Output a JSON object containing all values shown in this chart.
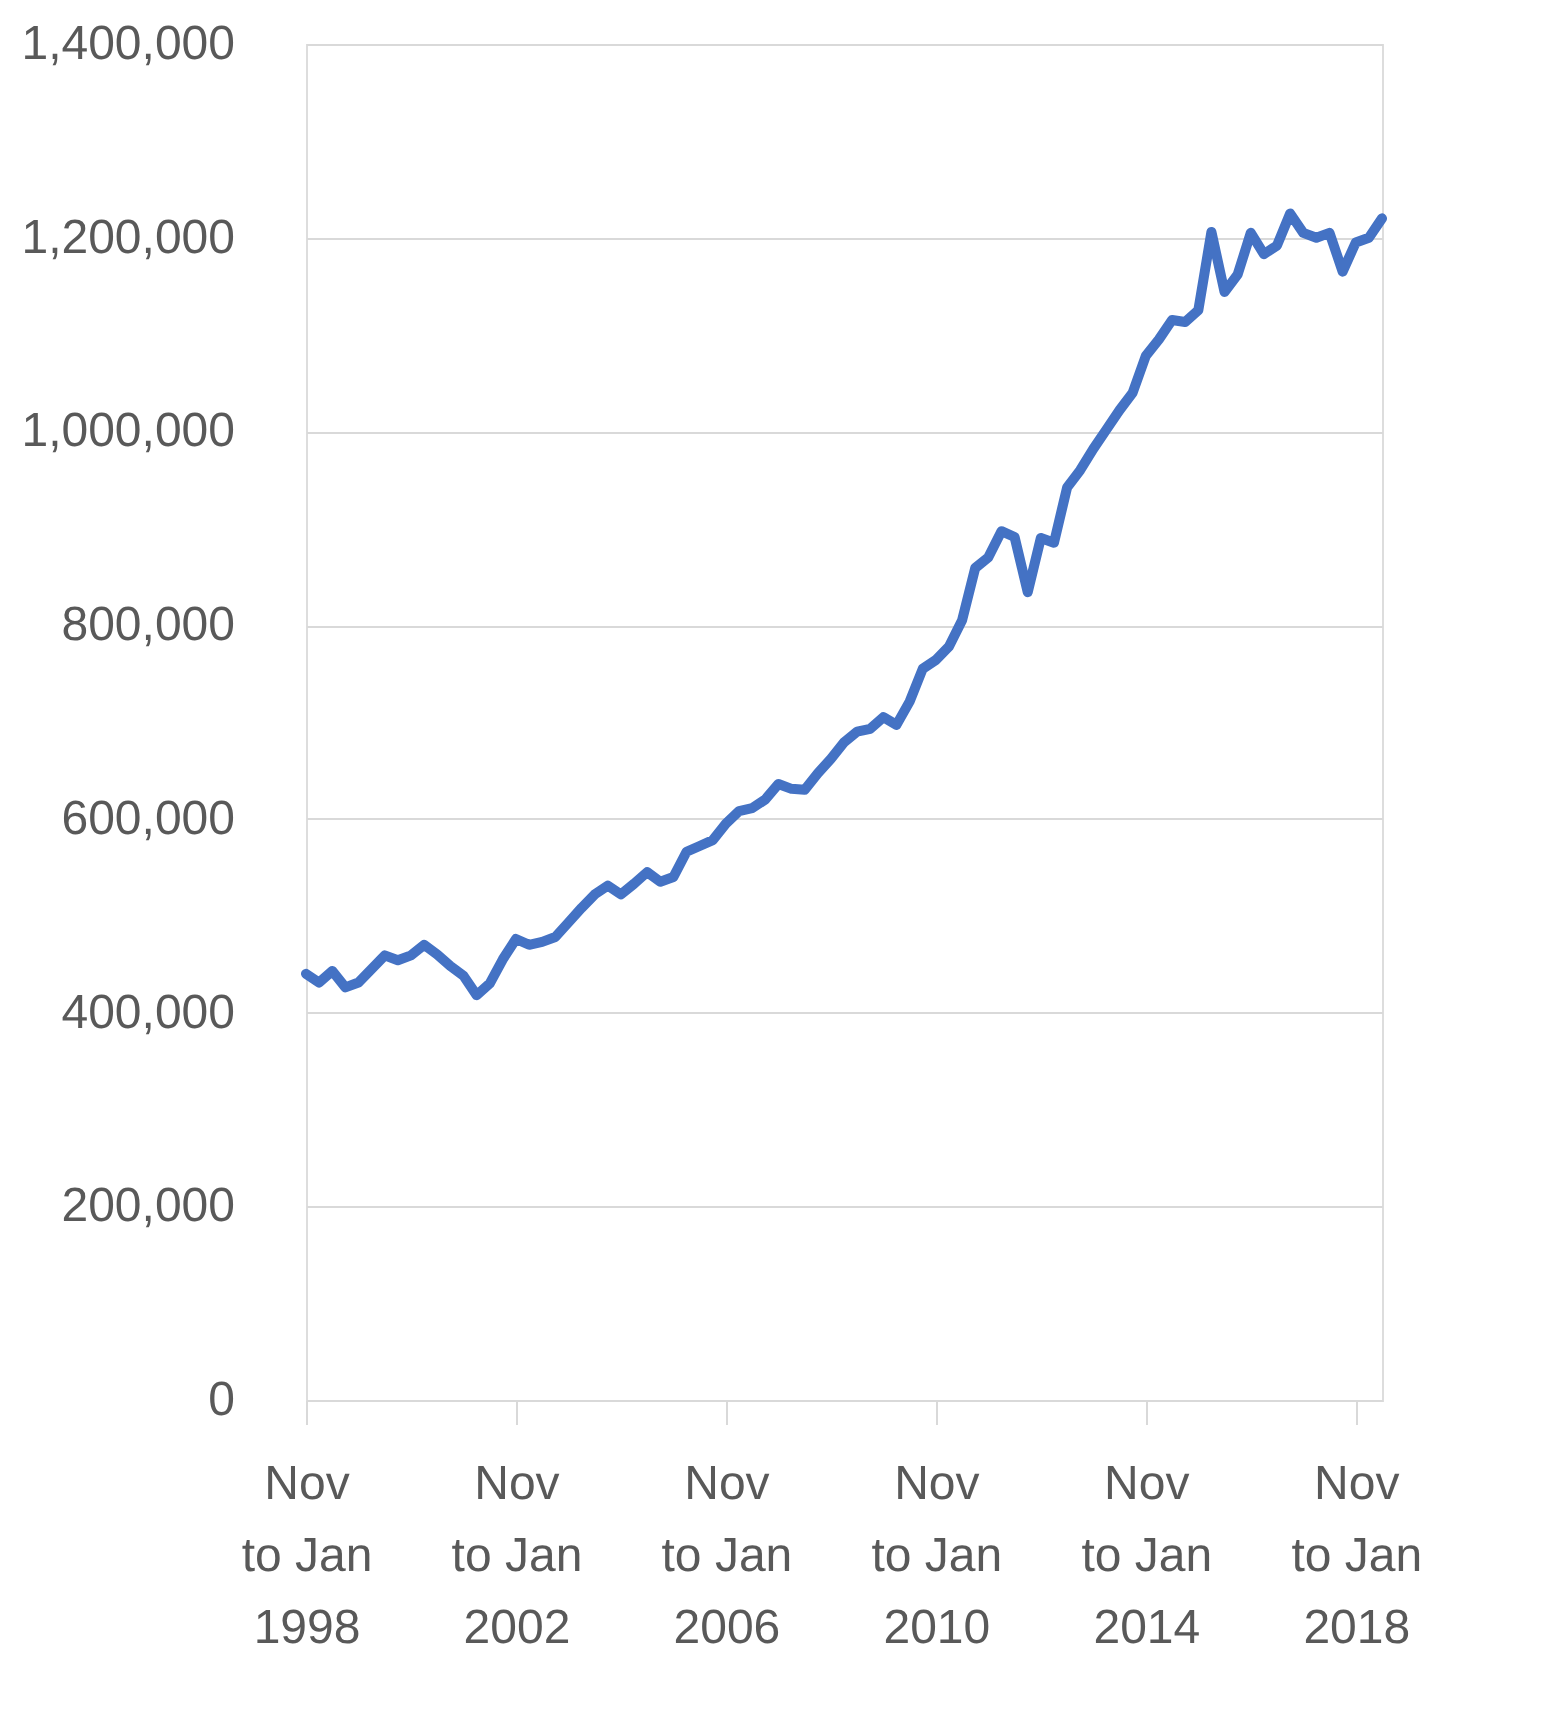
{
  "chart_data": {
    "type": "line",
    "categories": [
      "Nov\nto Jan\n1998",
      null,
      null,
      null,
      null,
      null,
      null,
      null,
      null,
      null,
      null,
      null,
      null,
      null,
      null,
      null,
      "Nov\nto Jan\n2002",
      null,
      null,
      null,
      null,
      null,
      null,
      null,
      null,
      null,
      null,
      null,
      null,
      null,
      null,
      null,
      "Nov\nto Jan\n2006",
      null,
      null,
      null,
      null,
      null,
      null,
      null,
      null,
      null,
      null,
      null,
      null,
      null,
      null,
      null,
      "Nov\nto Jan\n2010",
      null,
      null,
      null,
      null,
      null,
      null,
      null,
      null,
      null,
      null,
      null,
      null,
      null,
      null,
      null,
      "Nov\nto Jan\n2014",
      null,
      null,
      null,
      null,
      null,
      null,
      null,
      null,
      null,
      null,
      null,
      null,
      null,
      null,
      null,
      "Nov\nto Jan\n2018",
      null,
      null
    ],
    "series": [
      {
        "color": "#4472c4",
        "values": [
          440000,
          431000,
          443000,
          426000,
          431000,
          445000,
          459000,
          454000,
          459000,
          470000,
          460000,
          448000,
          438000,
          418000,
          430000,
          455000,
          476000,
          470000,
          473000,
          478000,
          493000,
          508000,
          522000,
          531000,
          522000,
          533000,
          545000,
          535000,
          540000,
          566000,
          572000,
          578000,
          595000,
          608000,
          611000,
          620000,
          636000,
          631000,
          630000,
          647000,
          662000,
          679000,
          690000,
          693000,
          705000,
          697000,
          721000,
          755000,
          764000,
          778000,
          805000,
          859000,
          870000,
          897000,
          891000,
          834000,
          890000,
          885000,
          942000,
          960000,
          982000,
          1002000,
          1022000,
          1040000,
          1078000,
          1095000,
          1115000,
          1113000,
          1125000,
          1206000,
          1144000,
          1162000,
          1205000,
          1183000,
          1192000,
          1225000,
          1205000,
          1200000,
          1205000,
          1165000,
          1195000,
          1200000,
          1220000
        ]
      }
    ],
    "ylim": [
      0,
      1400000
    ],
    "yticks": [
      {
        "value": 0,
        "label": "0"
      },
      {
        "value": 200000,
        "label": "200,000"
      },
      {
        "value": 400000,
        "label": "400,000"
      },
      {
        "value": 600000,
        "label": "600,000"
      },
      {
        "value": 800000,
        "label": "800,000"
      },
      {
        "value": 1000000,
        "label": "1,000,000"
      },
      {
        "value": 1200000,
        "label": "1,200,000"
      },
      {
        "value": 1400000,
        "label": "1,400,000"
      }
    ],
    "grid": "y",
    "legend": false,
    "marker": "none",
    "line_style": "solid"
  }
}
